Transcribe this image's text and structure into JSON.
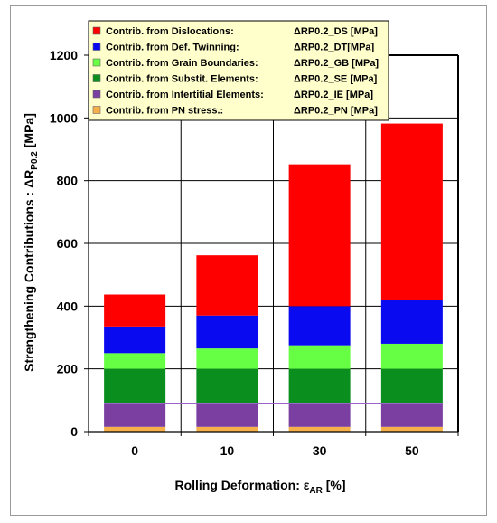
{
  "chart_data": {
    "type": "bar",
    "stacked": true,
    "categories": [
      "0",
      "10",
      "30",
      "50"
    ],
    "xlabel": "Rolling Deformation: ε",
    "xlabel_sub": "AR",
    "xlabel_unit": " [%]",
    "ylabel": "Strengthening Contributions : ΔR",
    "ylabel_sub": "P0.2",
    "ylabel_unit": " [MPa]",
    "ylim": [
      0,
      1200
    ],
    "yticks": [
      0,
      200,
      400,
      600,
      800,
      1000,
      1200
    ],
    "grid": true,
    "legend_position": "top",
    "reference_line": {
      "value": 90,
      "color": "#9966cc"
    },
    "series": [
      {
        "name": "Contrib. from PN stress.:",
        "symbol": "ΔRP0.2_PN  [MPa]",
        "color": "#f5b04a",
        "values": [
          15,
          15,
          15,
          15
        ]
      },
      {
        "name": "Contrib. from Intertitial Elements:",
        "symbol": "ΔRP0.2_IE [MPa]",
        "color": "#7a3fa0",
        "values": [
          75,
          75,
          75,
          75
        ]
      },
      {
        "name": "Contrib. from Substit. Elements:",
        "symbol": "ΔRP0.2_SE  [MPa]",
        "color": "#0a8f1e",
        "values": [
          110,
          110,
          110,
          110
        ]
      },
      {
        "name": "Contrib. from Grain Boundaries:",
        "symbol": "ΔRP0.2_GB  [MPa]",
        "color": "#66ff44",
        "values": [
          50,
          65,
          75,
          80
        ]
      },
      {
        "name": "Contrib. from Def. Twinning:",
        "symbol": "ΔRP0.2_DT[MPa]",
        "color": "#0a0af0",
        "values": [
          85,
          105,
          125,
          140
        ]
      },
      {
        "name": "Contrib. from Dislocations:",
        "symbol": "ΔRP0.2_DS [MPa]",
        "color": "#ff0000",
        "values": [
          102,
          192,
          452,
          562
        ]
      }
    ],
    "legend_order": [
      5,
      4,
      3,
      2,
      1,
      0
    ]
  }
}
